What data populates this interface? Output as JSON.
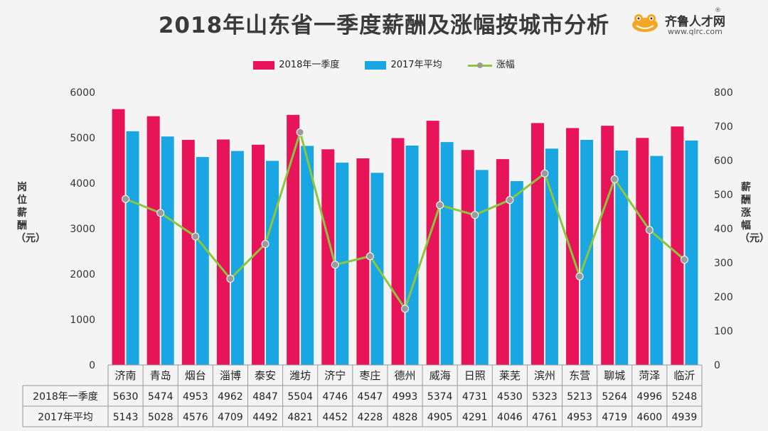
{
  "title": "2018年山东省一季度薪酬及涨幅按城市分析",
  "logo": {
    "brand": "齐鲁人才网",
    "url": "www.qlrc.com",
    "reg": "®"
  },
  "colors": {
    "q1_2018": "#e8145a",
    "avg_2017": "#1aa6e2",
    "growth_line": "#8cc63f",
    "growth_marker": "#9b9b9b"
  },
  "chart_data": {
    "type": "bar",
    "title": "2018年山东省一季度薪酬及涨幅按城市分析",
    "ylabel": "岗位薪酬（元）",
    "y2label": "薪酬涨幅（元）",
    "ylim": [
      0,
      6000
    ],
    "y2lim": [
      0,
      800
    ],
    "yticks": [
      0,
      1000,
      2000,
      3000,
      4000,
      5000,
      6000
    ],
    "y2ticks": [
      0,
      100,
      200,
      300,
      400,
      500,
      600,
      700,
      800
    ],
    "grid": false,
    "legend": "top",
    "categories": [
      "济南",
      "青岛",
      "烟台",
      "淄博",
      "泰安",
      "潍坊",
      "济宁",
      "枣庄",
      "德州",
      "威海",
      "日照",
      "莱芜",
      "滨州",
      "东营",
      "聊城",
      "菏泽",
      "临沂"
    ],
    "series": [
      {
        "name": "2018年一季度",
        "type": "bar",
        "axis": "left",
        "values": [
          5630,
          5474,
          4953,
          4962,
          4847,
          5504,
          4746,
          4547,
          4993,
          5374,
          4731,
          4530,
          5323,
          5213,
          5264,
          4996,
          5248
        ]
      },
      {
        "name": "2017年平均",
        "type": "bar",
        "axis": "left",
        "values": [
          5143,
          5028,
          4576,
          4709,
          4492,
          4821,
          4452,
          4228,
          4828,
          4905,
          4291,
          4046,
          4761,
          4953,
          4719,
          4600,
          4939
        ]
      },
      {
        "name": "涨幅",
        "type": "line",
        "axis": "right",
        "values": [
          487,
          446,
          377,
          253,
          355,
          683,
          294,
          319,
          165,
          469,
          440,
          484,
          562,
          260,
          545,
          396,
          309
        ]
      }
    ],
    "table_rows": [
      {
        "label": "2018年一季度",
        "values": [
          "5630",
          "5474",
          "4953",
          "4962",
          "4847",
          "5504",
          "4746",
          "4547",
          "4993",
          "5374",
          "4731",
          "4530",
          "5323",
          "5213",
          "5264",
          "4996",
          "5248"
        ]
      },
      {
        "label": "2017年平均",
        "values": [
          "5143",
          "5028",
          "4576",
          "4709",
          "4492",
          "4821",
          "4452",
          "4228",
          "4828",
          "4905",
          "4291",
          "4046",
          "4761",
          "4953",
          "4719",
          "4600",
          "4939"
        ]
      }
    ]
  }
}
